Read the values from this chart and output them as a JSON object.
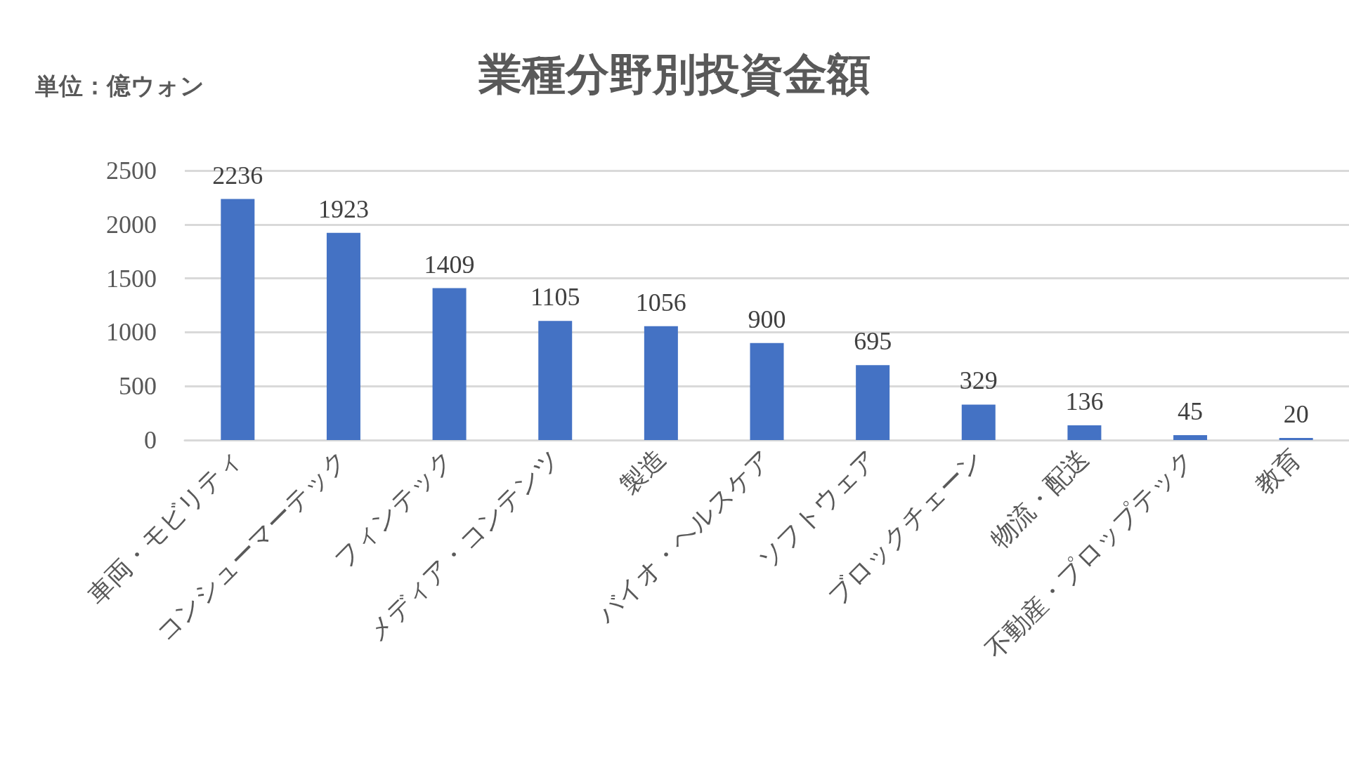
{
  "chart_data": {
    "type": "bar",
    "title": "業種分野別投資金額",
    "annotations": [
      "単位：億ウォン"
    ],
    "categories": [
      "車両・モビリティ",
      "コンシューマーテック",
      "フィンテック",
      "メディア・コンテンツ",
      "製造",
      "バイオ・ヘルスケア",
      "ソフトウェア",
      "ブロックチェーン",
      "物流・配送",
      "不動産・プロップテック",
      "教育"
    ],
    "values": [
      2236,
      1923,
      1409,
      1105,
      1056,
      900,
      695,
      329,
      136,
      45,
      20
    ],
    "color": "#4472c4",
    "ylim": [
      0,
      2500
    ],
    "yticks": [
      0,
      500,
      1000,
      1500,
      2000,
      2500
    ],
    "grid": "y",
    "data_labels": true
  }
}
